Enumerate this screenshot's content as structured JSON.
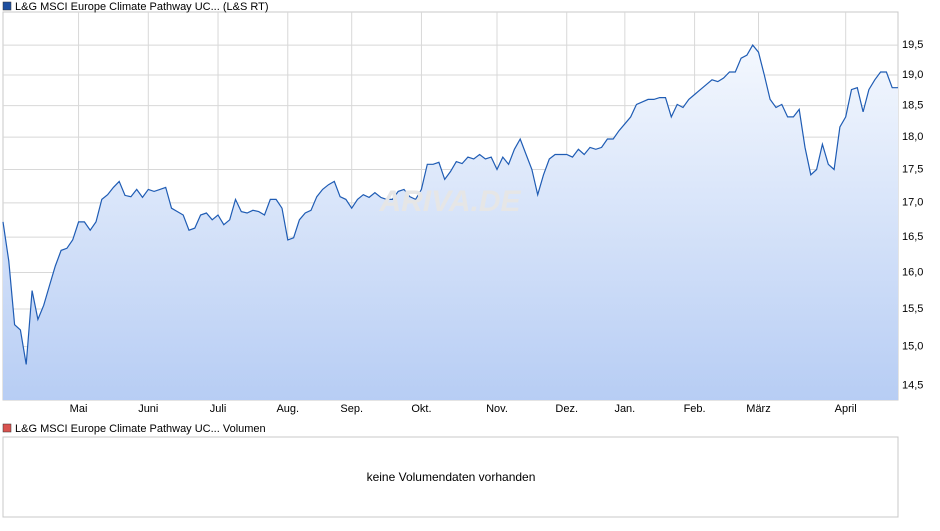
{
  "chart_data": {
    "type": "line",
    "legend": "L&G MSCI Europe Climate Pathway UC... (L&S RT)",
    "watermark": "ARIVA.DE",
    "color": "#1f5cb4",
    "log": true,
    "grid": true,
    "ylim": [
      14.32,
      20.07
    ],
    "yticks": [
      {
        "value": 14.5,
        "label": "14,5"
      },
      {
        "value": 15.0,
        "label": "15,0"
      },
      {
        "value": 15.5,
        "label": "15,5"
      },
      {
        "value": 16.0,
        "label": "16,0"
      },
      {
        "value": 16.5,
        "label": "16,5"
      },
      {
        "value": 17.0,
        "label": "17,0"
      },
      {
        "value": 17.5,
        "label": "17,5"
      },
      {
        "value": 18.0,
        "label": "18,0"
      },
      {
        "value": 18.5,
        "label": "18,5"
      },
      {
        "value": 19.0,
        "label": "19,0"
      },
      {
        "value": 19.5,
        "label": "19,5"
      }
    ],
    "xlim": [
      0,
      154
    ],
    "xticks": [
      {
        "value": 13,
        "label": "Mai"
      },
      {
        "value": 25,
        "label": "Juni"
      },
      {
        "value": 37,
        "label": "Juli"
      },
      {
        "value": 49,
        "label": "Aug."
      },
      {
        "value": 60,
        "label": "Sep."
      },
      {
        "value": 72,
        "label": "Okt."
      },
      {
        "value": 85,
        "label": "Nov."
      },
      {
        "value": 97,
        "label": "Dez."
      },
      {
        "value": 107,
        "label": "Jan."
      },
      {
        "value": 119,
        "label": "Feb."
      },
      {
        "value": 130,
        "label": "März"
      },
      {
        "value": 145,
        "label": "April"
      }
    ],
    "values": [
      16.72,
      16.16,
      15.29,
      15.22,
      14.77,
      15.75,
      15.36,
      15.55,
      15.82,
      16.09,
      16.31,
      16.34,
      16.46,
      16.72,
      16.72,
      16.6,
      16.72,
      17.05,
      17.12,
      17.23,
      17.32,
      17.11,
      17.09,
      17.2,
      17.08,
      17.2,
      17.17,
      17.2,
      17.23,
      16.92,
      16.87,
      16.82,
      16.6,
      16.63,
      16.82,
      16.85,
      16.75,
      16.82,
      16.68,
      16.75,
      17.05,
      16.87,
      16.85,
      16.89,
      16.87,
      16.82,
      17.05,
      17.05,
      16.92,
      16.46,
      16.49,
      16.75,
      16.85,
      16.89,
      17.09,
      17.2,
      17.27,
      17.32,
      17.09,
      17.05,
      16.92,
      17.05,
      17.12,
      17.08,
      17.15,
      17.08,
      17.05,
      17.05,
      17.17,
      17.2,
      17.09,
      17.05,
      17.2,
      17.58,
      17.58,
      17.61,
      17.35,
      17.47,
      17.62,
      17.59,
      17.69,
      17.66,
      17.73,
      17.66,
      17.69,
      17.5,
      17.69,
      17.58,
      17.81,
      17.97,
      17.73,
      17.5,
      17.12,
      17.42,
      17.66,
      17.73,
      17.73,
      17.73,
      17.69,
      17.81,
      17.73,
      17.84,
      17.81,
      17.84,
      17.97,
      17.97,
      18.1,
      18.21,
      18.32,
      18.52,
      18.56,
      18.6,
      18.6,
      18.63,
      18.63,
      18.32,
      18.52,
      18.47,
      18.6,
      18.68,
      18.76,
      18.84,
      18.92,
      18.89,
      18.95,
      19.05,
      19.05,
      19.28,
      19.33,
      19.5,
      19.38,
      19.0,
      18.6,
      18.47,
      18.52,
      18.32,
      18.32,
      18.44,
      17.84,
      17.42,
      17.5,
      17.89,
      17.58,
      17.5,
      18.16,
      18.32,
      18.76,
      18.79,
      18.4,
      18.76,
      18.92,
      19.05,
      19.05,
      18.79,
      18.79
    ]
  },
  "volume_panel": {
    "legend": "L&G MSCI Europe Climate Pathway UC... Volumen",
    "message": "keine Volumendaten vorhanden"
  }
}
